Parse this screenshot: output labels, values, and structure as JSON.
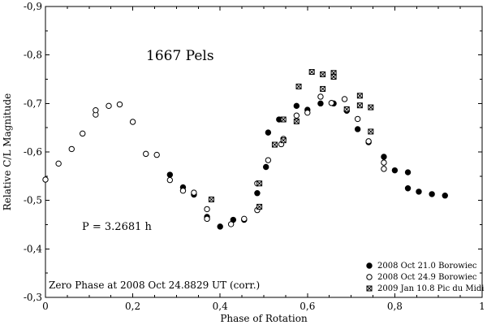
{
  "chart_data": {
    "type": "scatter",
    "title": "1667 Pels",
    "xlabel": "Phase of Rotation",
    "ylabel": "Relative C/L Magnitude",
    "xlim": [
      0,
      1
    ],
    "ylim": [
      -0.3,
      -0.9
    ],
    "xticks": [
      0,
      0.2,
      0.4,
      0.6,
      0.8,
      1
    ],
    "xtick_labels": [
      "0",
      "0,2",
      "0,4",
      "0,6",
      "0,8",
      "1"
    ],
    "yticks": [
      -0.9,
      -0.8,
      -0.7,
      -0.6,
      -0.5,
      -0.4,
      -0.3
    ],
    "ytick_labels": [
      "-0,9",
      "-0,8",
      "-0,7",
      "-0,6",
      "-0,5",
      "-0,4",
      "-0,3"
    ],
    "annotations": {
      "period": "P = 3.2681 h",
      "zero_phase": "Zero Phase at 2008 Oct 24.8829 UT (corr.)"
    },
    "legend_position": "bottom-right",
    "series": [
      {
        "name": "2008 Oct 21.0 Borowiec",
        "marker": "filled-circle",
        "points": [
          [
            0.285,
            -0.553
          ],
          [
            0.315,
            -0.527
          ],
          [
            0.34,
            -0.512
          ],
          [
            0.37,
            -0.466
          ],
          [
            0.4,
            -0.446
          ],
          [
            0.43,
            -0.46
          ],
          [
            0.455,
            -0.46
          ],
          [
            0.485,
            -0.515
          ],
          [
            0.505,
            -0.569
          ],
          [
            0.51,
            -0.64
          ],
          [
            0.535,
            -0.667
          ],
          [
            0.575,
            -0.695
          ],
          [
            0.6,
            -0.687
          ],
          [
            0.63,
            -0.7
          ],
          [
            0.66,
            -0.7
          ],
          [
            0.69,
            -0.685
          ],
          [
            0.715,
            -0.647
          ],
          [
            0.74,
            -0.62
          ],
          [
            0.775,
            -0.59
          ],
          [
            0.8,
            -0.562
          ],
          [
            0.83,
            -0.558
          ],
          [
            0.83,
            -0.525
          ],
          [
            0.855,
            -0.518
          ],
          [
            0.885,
            -0.513
          ],
          [
            0.915,
            -0.51
          ]
        ]
      },
      {
        "name": "2008 Oct 24.9 Borowiec",
        "marker": "open-circle",
        "points": [
          [
            0.0,
            -0.543
          ],
          [
            0.03,
            -0.576
          ],
          [
            0.06,
            -0.606
          ],
          [
            0.085,
            -0.638
          ],
          [
            0.115,
            -0.677
          ],
          [
            0.115,
            -0.686
          ],
          [
            0.145,
            -0.695
          ],
          [
            0.17,
            -0.698
          ],
          [
            0.2,
            -0.662
          ],
          [
            0.23,
            -0.596
          ],
          [
            0.255,
            -0.594
          ],
          [
            0.285,
            -0.542
          ],
          [
            0.315,
            -0.52
          ],
          [
            0.34,
            -0.516
          ],
          [
            0.37,
            -0.482
          ],
          [
            0.37,
            -0.462
          ],
          [
            0.425,
            -0.451
          ],
          [
            0.455,
            -0.462
          ],
          [
            0.485,
            -0.48
          ],
          [
            0.485,
            -0.535
          ],
          [
            0.51,
            -0.583
          ],
          [
            0.54,
            -0.616
          ],
          [
            0.545,
            -0.627
          ],
          [
            0.575,
            -0.675
          ],
          [
            0.6,
            -0.681
          ],
          [
            0.63,
            -0.714
          ],
          [
            0.655,
            -0.701
          ],
          [
            0.685,
            -0.709
          ],
          [
            0.715,
            -0.668
          ],
          [
            0.74,
            -0.622
          ],
          [
            0.775,
            -0.578
          ],
          [
            0.775,
            -0.565
          ]
        ]
      },
      {
        "name": "2009 Jan 10.8 Pic du Midi",
        "marker": "crossed-square",
        "points": [
          [
            0.38,
            -0.502
          ],
          [
            0.49,
            -0.487
          ],
          [
            0.49,
            -0.535
          ],
          [
            0.525,
            -0.615
          ],
          [
            0.545,
            -0.624
          ],
          [
            0.545,
            -0.667
          ],
          [
            0.575,
            -0.663
          ],
          [
            0.58,
            -0.735
          ],
          [
            0.61,
            -0.765
          ],
          [
            0.635,
            -0.73
          ],
          [
            0.635,
            -0.76
          ],
          [
            0.66,
            -0.763
          ],
          [
            0.66,
            -0.755
          ],
          [
            0.69,
            -0.688
          ],
          [
            0.72,
            -0.696
          ],
          [
            0.72,
            -0.716
          ],
          [
            0.745,
            -0.692
          ],
          [
            0.745,
            -0.642
          ]
        ]
      }
    ]
  }
}
